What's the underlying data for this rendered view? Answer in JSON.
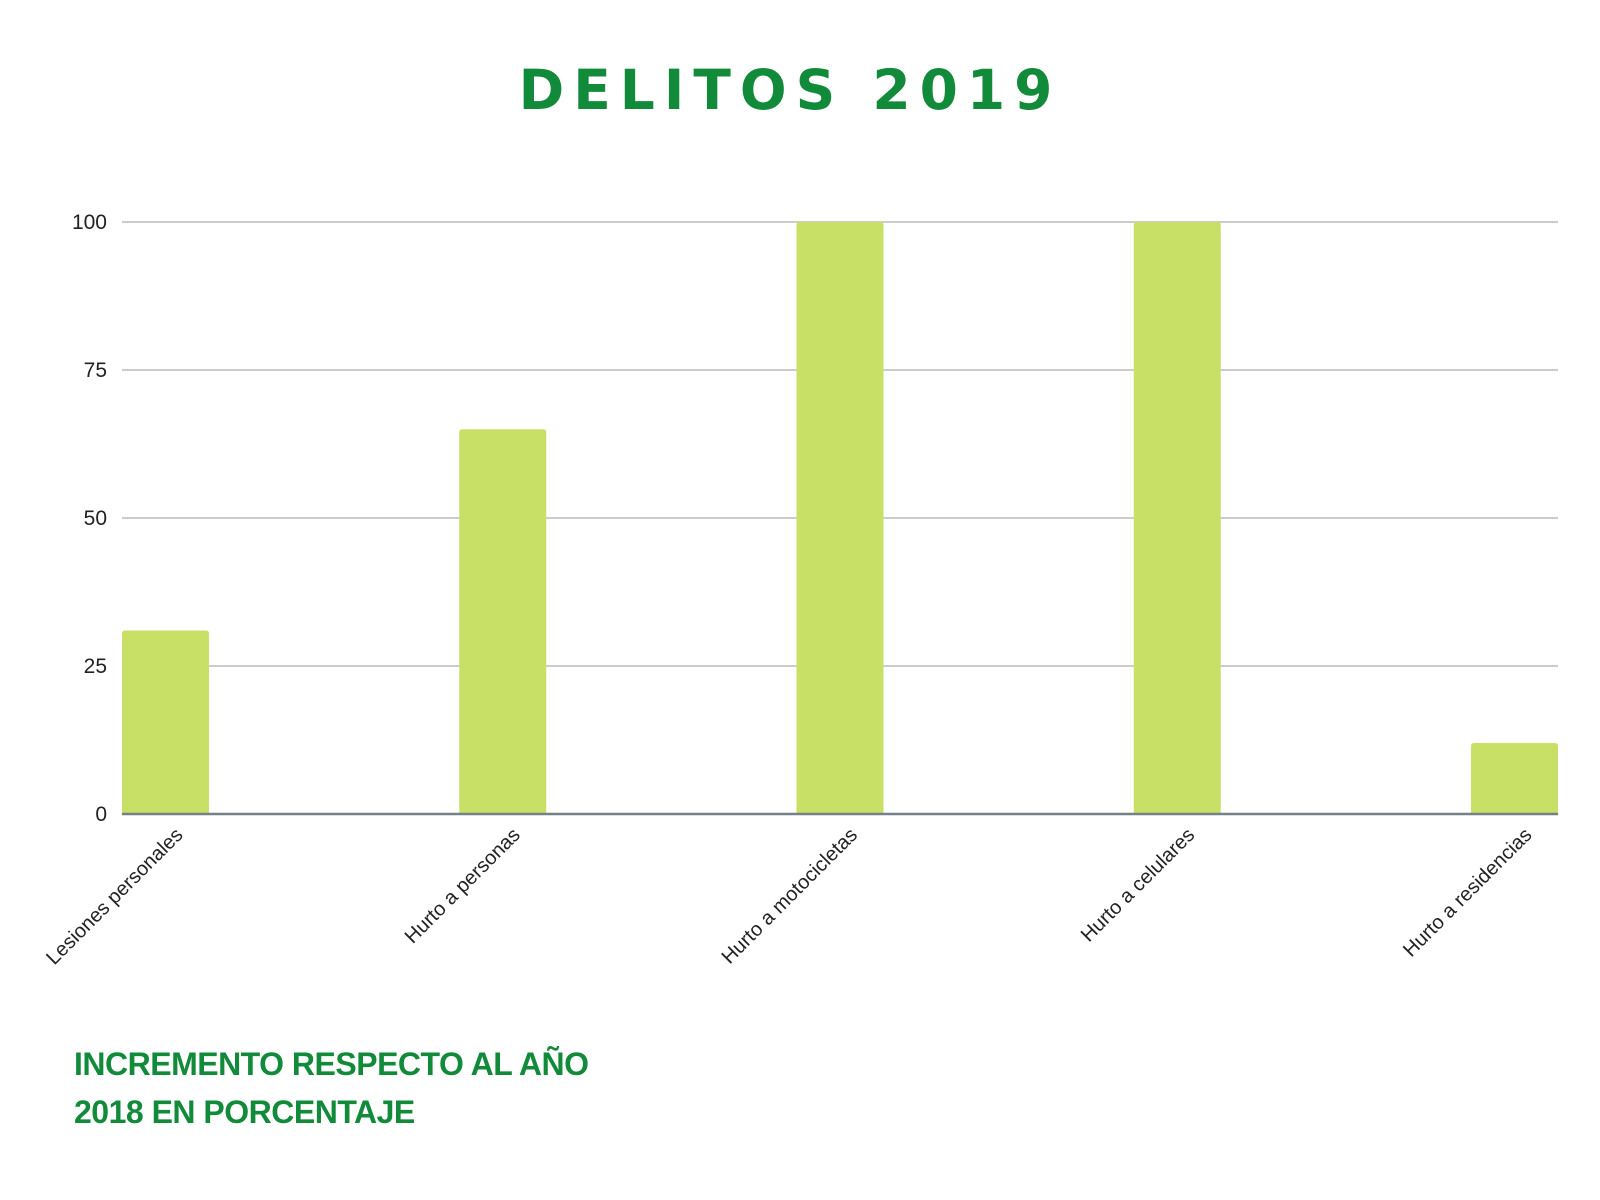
{
  "title": "DELITOS 2019",
  "subtitle": "INCREMENTO RESPECTO AL AÑO 2018 EN PORCENTAJE",
  "colors": {
    "title": "#118a3a",
    "bar": "#c8e066",
    "grid": "#cccccc",
    "axis": "#778088"
  },
  "chart_data": {
    "type": "bar",
    "categories": [
      "Lesiones personales",
      "Hurto a personas",
      "Hurto a motocicletas",
      "Hurto a celulares",
      "Hurto a residencias"
    ],
    "values": [
      31,
      65,
      100,
      100,
      12
    ],
    "yticks": [
      0,
      25,
      50,
      75,
      100
    ],
    "ylim": [
      0,
      100
    ],
    "grid": true,
    "legend": "none"
  }
}
